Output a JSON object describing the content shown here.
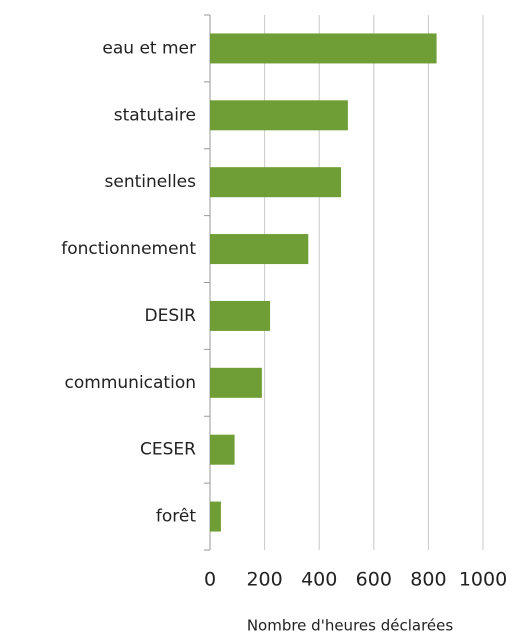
{
  "chart_data": {
    "type": "bar",
    "orientation": "horizontal",
    "categories": [
      "eau et mer",
      "statutaire",
      "sentinelles",
      "fonctionnement",
      "DESIR",
      "communication",
      "CESER",
      "forêt"
    ],
    "values": [
      830,
      505,
      480,
      360,
      220,
      190,
      90,
      40
    ],
    "color": "#6f9e37",
    "xlim": [
      0,
      1000
    ],
    "xticks": [
      0,
      200,
      400,
      600,
      800,
      1000
    ],
    "x_label": "Nombre d'heures déclarées",
    "grid": true
  }
}
